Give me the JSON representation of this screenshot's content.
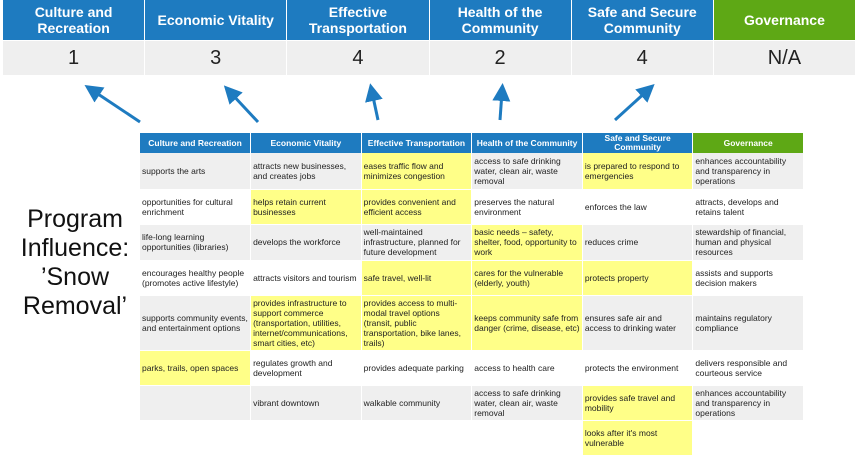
{
  "summary": {
    "columns": [
      {
        "label": "Culture and Recreation",
        "score": "1"
      },
      {
        "label": "Economic Vitality",
        "score": "3"
      },
      {
        "label": "Effective Transportation",
        "score": "4"
      },
      {
        "label": "Health of the Community",
        "score": "2"
      },
      {
        "label": "Safe and Secure Community",
        "score": "4"
      },
      {
        "label": "Governance",
        "score": "N/A"
      }
    ]
  },
  "side_label": "Program Influence: ’Snow Removal’",
  "colors": {
    "header_blue": "#1e7bc0",
    "governance_green": "#5ea815",
    "highlight": "#ffff88"
  },
  "table": {
    "headers": [
      "Culture and Recreation",
      "Economic Vitality",
      "Effective Transportation",
      "Health of the Community",
      "Safe and Secure Community",
      "Governance"
    ],
    "rows": [
      [
        {
          "t": "supports the arts"
        },
        {
          "t": "attracts new businesses, and creates jobs"
        },
        {
          "t": "eases traffic flow and minimizes congestion",
          "h": true
        },
        {
          "t": "access to safe drinking water, clean air, waste removal"
        },
        {
          "t": "is prepared to respond to emergencies",
          "h": true
        },
        {
          "t": "enhances accountability and transparency in operations"
        }
      ],
      [
        {
          "t": "opportunities for cultural enrichment"
        },
        {
          "t": "helps retain current businesses",
          "h": true
        },
        {
          "t": "provides convenient and efficient access",
          "h": true
        },
        {
          "t": "preserves the natural environment"
        },
        {
          "t": "enforces the law"
        },
        {
          "t": "attracts, develops and retains talent"
        }
      ],
      [
        {
          "t": "life-long learning opportunities (libraries)"
        },
        {
          "t": "develops the workforce"
        },
        {
          "t": "well-maintained infrastructure, planned for future development"
        },
        {
          "t": "basic needs – safety, shelter, food, opportunity to work",
          "h": true
        },
        {
          "t": "reduces crime"
        },
        {
          "t": "stewardship of financial, human and physical resources"
        }
      ],
      [
        {
          "t": "encourages healthy people (promotes active lifestyle)"
        },
        {
          "t": "attracts visitors and tourism"
        },
        {
          "t": "safe travel, well-lit",
          "h": true
        },
        {
          "t": "cares for the vulnerable (elderly, youth)",
          "h": true
        },
        {
          "t": "protects property",
          "h": true
        },
        {
          "t": "assists and supports decision makers"
        }
      ],
      [
        {
          "t": "supports community events, and entertainment options"
        },
        {
          "t": "provides infrastructure to support commerce (transportation, utilities, internet/communications, smart cities, etc)",
          "h": true
        },
        {
          "t": "provides access to multi-modal travel options (transit, public transportation, bike lanes, trails)",
          "h": true
        },
        {
          "t": "keeps community safe from danger (crime, disease, etc)",
          "h": true
        },
        {
          "t": "ensures safe air and access to drinking water"
        },
        {
          "t": "maintains regulatory compliance"
        }
      ],
      [
        {
          "t": "parks, trails, open spaces",
          "h": true
        },
        {
          "t": "regulates growth and development"
        },
        {
          "t": "provides adequate parking"
        },
        {
          "t": "access to health care"
        },
        {
          "t": "protects the environment"
        },
        {
          "t": "delivers responsible and courteous service"
        }
      ],
      [
        {
          "t": ""
        },
        {
          "t": "vibrant downtown"
        },
        {
          "t": "walkable community"
        },
        {
          "t": "access to safe drinking water, clean air, waste removal"
        },
        {
          "t": "provides safe travel and mobility",
          "h": true
        },
        {
          "t": "enhances accountability and transparency in operations"
        }
      ],
      [
        {
          "t": ""
        },
        {
          "t": ""
        },
        {
          "t": ""
        },
        {
          "t": ""
        },
        {
          "t": "looks after it's most vulnerable",
          "h": true
        },
        {
          "t": ""
        }
      ]
    ]
  }
}
